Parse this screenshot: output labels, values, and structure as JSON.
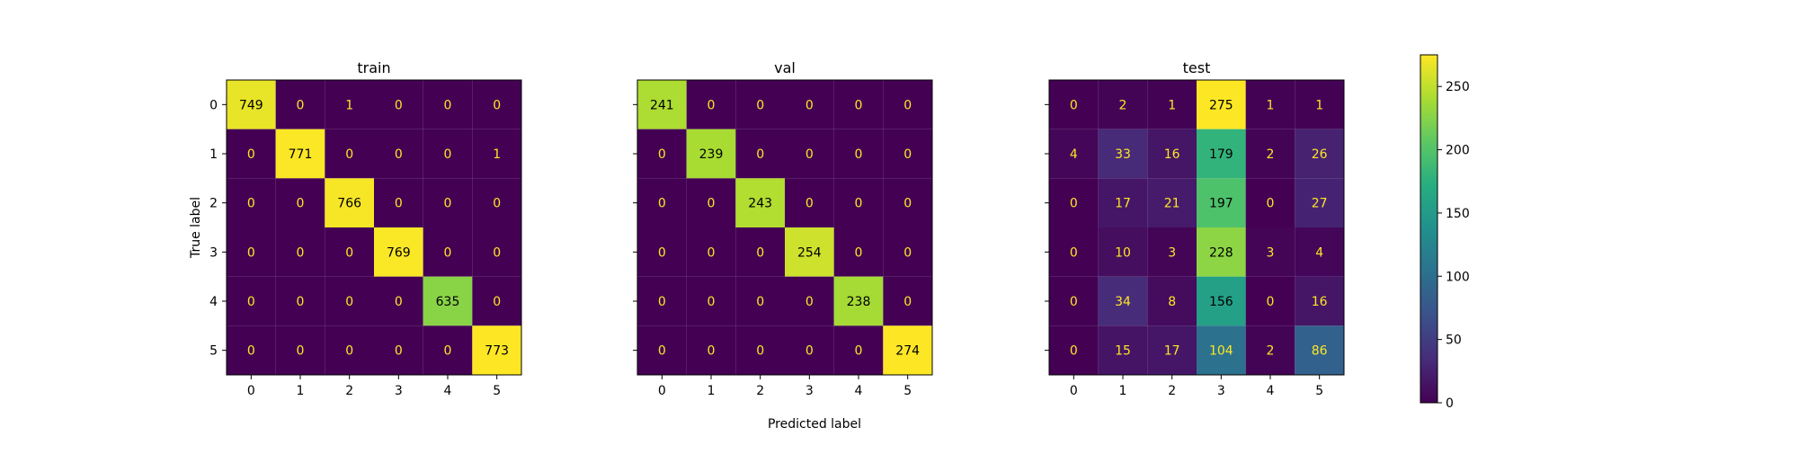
{
  "chart_data": {
    "type": "heatmap",
    "xlabel": "Predicted label",
    "ylabel": "True label",
    "x_ticks": [
      "0",
      "1",
      "2",
      "3",
      "4",
      "5"
    ],
    "y_ticks": [
      "0",
      "1",
      "2",
      "3",
      "4",
      "5"
    ],
    "colormap": "viridis",
    "value_range": [
      0,
      275
    ],
    "colorbar_ticks": [
      "0",
      "50",
      "100",
      "150",
      "200",
      "250"
    ],
    "panels": [
      {
        "title": "train",
        "matrix": [
          [
            749,
            0,
            1,
            0,
            0,
            0
          ],
          [
            0,
            771,
            0,
            0,
            0,
            1
          ],
          [
            0,
            0,
            766,
            0,
            0,
            0
          ],
          [
            0,
            0,
            0,
            769,
            0,
            0
          ],
          [
            0,
            0,
            0,
            0,
            635,
            0
          ],
          [
            0,
            0,
            0,
            0,
            0,
            773
          ]
        ]
      },
      {
        "title": "val",
        "matrix": [
          [
            241,
            0,
            0,
            0,
            0,
            0
          ],
          [
            0,
            239,
            0,
            0,
            0,
            0
          ],
          [
            0,
            0,
            243,
            0,
            0,
            0
          ],
          [
            0,
            0,
            0,
            254,
            0,
            0
          ],
          [
            0,
            0,
            0,
            0,
            238,
            0
          ],
          [
            0,
            0,
            0,
            0,
            0,
            274
          ]
        ]
      },
      {
        "title": "test",
        "matrix": [
          [
            0,
            2,
            1,
            275,
            1,
            1
          ],
          [
            4,
            33,
            16,
            179,
            2,
            26
          ],
          [
            0,
            17,
            21,
            197,
            0,
            27
          ],
          [
            0,
            10,
            3,
            228,
            3,
            4
          ],
          [
            0,
            34,
            8,
            156,
            0,
            16
          ],
          [
            0,
            15,
            17,
            104,
            2,
            86
          ]
        ]
      }
    ]
  }
}
